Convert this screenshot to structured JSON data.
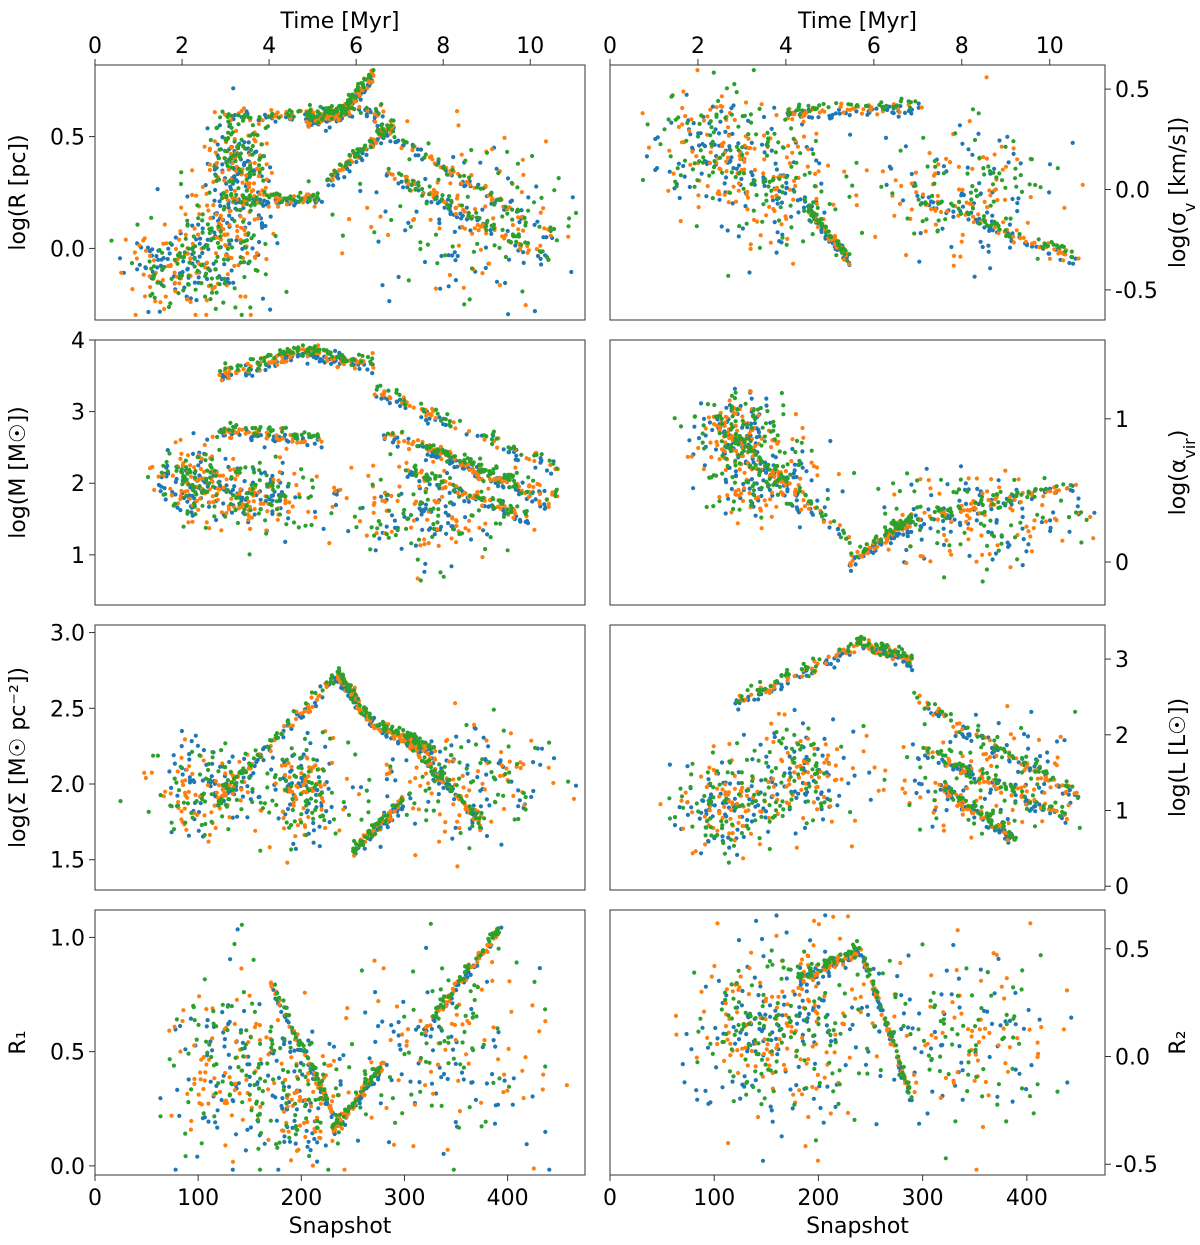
{
  "figure": {
    "top_axis_label": "Time [Myr]",
    "bottom_axis_label": "Snapshot",
    "series_colors": [
      "#1f77b4",
      "#ff7f0e",
      "#2ca02c"
    ]
  },
  "chart_data": [
    {
      "type": "scatter",
      "id": "logR",
      "title": "",
      "ylabel": "log(R [pc])",
      "ylabel_side": "left",
      "xlabel": "",
      "xlabel_top": "Time [Myr]",
      "xlim": [
        0,
        475
      ],
      "ylim": [
        -0.32,
        0.82
      ],
      "xticks": [],
      "yticks": [
        0.0,
        0.5
      ],
      "ytick_labels": [
        "0.0",
        "0.5"
      ],
      "top_ticks": [
        0,
        2,
        4,
        6,
        8,
        10
      ],
      "top_tick_labels": [
        "0",
        "2",
        "4",
        "6",
        "8",
        "10"
      ],
      "top_scale_myr_per_snapshot": 0.0237,
      "tracks": [
        {
          "x": [
            235,
            270
          ],
          "y": [
            0.58,
            0.78
          ]
        },
        {
          "x": [
            205,
            235
          ],
          "y": [
            0.57,
            0.6
          ]
        },
        {
          "x": [
            120,
            280
          ],
          "y": [
            0.58,
            0.62
          ]
        },
        {
          "x": [
            270,
            450
          ],
          "y": [
            0.55,
            0.05
          ]
        },
        {
          "x": [
            280,
            440
          ],
          "y": [
            0.35,
            -0.05
          ]
        },
        {
          "x": [
            120,
            220
          ],
          "y": [
            0.22,
            0.22
          ]
        },
        {
          "x": [
            225,
            290
          ],
          "y": [
            0.3,
            0.55
          ]
        }
      ],
      "clusters": [
        {
          "cx": 80,
          "cy": -0.08,
          "sx": 25,
          "sy": 0.1
        },
        {
          "cx": 130,
          "cy": 0.05,
          "sx": 20,
          "sy": 0.15
        },
        {
          "cx": 360,
          "cy": 0.15,
          "sx": 50,
          "sy": 0.17
        },
        {
          "cx": 140,
          "cy": 0.4,
          "sx": 15,
          "sy": 0.1
        }
      ],
      "series": [
        {
          "name": "series 1",
          "color": "#1f77b4",
          "seed": 11
        },
        {
          "name": "series 2",
          "color": "#ff7f0e",
          "seed": 12
        },
        {
          "name": "series 3",
          "color": "#2ca02c",
          "seed": 13
        }
      ]
    },
    {
      "type": "scatter",
      "id": "logSigma_v",
      "title": "",
      "ylabel": "log(σ_v [km/s])",
      "ylabel_side": "right",
      "xlabel": "",
      "xlabel_top": "Time [Myr]",
      "xlim": [
        0,
        475
      ],
      "ylim": [
        -0.65,
        0.62
      ],
      "xticks": [],
      "yticks": [
        -0.5,
        0.0,
        0.5
      ],
      "ytick_labels": [
        "-0.5",
        "0.0",
        "0.5"
      ],
      "top_ticks": [
        0,
        2,
        4,
        6,
        8,
        10
      ],
      "top_tick_labels": [
        "0",
        "2",
        "4",
        "6",
        "8",
        "10"
      ],
      "top_scale_myr_per_snapshot": 0.0237,
      "tracks": [
        {
          "x": [
            170,
            300
          ],
          "y": [
            0.38,
            0.42
          ]
        },
        {
          "x": [
            300,
            450
          ],
          "y": [
            -0.05,
            -0.35
          ]
        },
        {
          "x": [
            190,
            230
          ],
          "y": [
            -0.1,
            -0.35
          ]
        }
      ],
      "clusters": [
        {
          "cx": 100,
          "cy": 0.2,
          "sx": 30,
          "sy": 0.15
        },
        {
          "cx": 160,
          "cy": 0.0,
          "sx": 30,
          "sy": 0.18
        },
        {
          "cx": 340,
          "cy": 0.0,
          "sx": 45,
          "sy": 0.17
        }
      ],
      "series": [
        {
          "name": "series 1",
          "color": "#1f77b4",
          "seed": 21
        },
        {
          "name": "series 2",
          "color": "#ff7f0e",
          "seed": 22
        },
        {
          "name": "series 3",
          "color": "#2ca02c",
          "seed": 23
        }
      ]
    },
    {
      "type": "scatter",
      "id": "logM",
      "title": "",
      "ylabel": "log(M [M☉])",
      "ylabel_side": "left",
      "xlabel": "",
      "xlabel_top": "",
      "xlim": [
        0,
        475
      ],
      "ylim": [
        0.3,
        4.0
      ],
      "xticks": [],
      "yticks": [
        1,
        2,
        3,
        4
      ],
      "ytick_labels": [
        "1",
        "2",
        "3",
        "4"
      ],
      "tracks": [
        {
          "x": [
            120,
            200
          ],
          "y": [
            3.5,
            3.85
          ]
        },
        {
          "x": [
            200,
            270
          ],
          "y": [
            3.85,
            3.65
          ]
        },
        {
          "x": [
            270,
            450
          ],
          "y": [
            3.3,
            2.2
          ]
        },
        {
          "x": [
            280,
            450
          ],
          "y": [
            2.7,
            1.8
          ]
        },
        {
          "x": [
            120,
            220
          ],
          "y": [
            2.75,
            2.6
          ]
        },
        {
          "x": [
            300,
            420
          ],
          "y": [
            2.2,
            1.5
          ]
        },
        {
          "x": [
            320,
            440
          ],
          "y": [
            2.5,
            1.7
          ]
        }
      ],
      "clusters": [
        {
          "cx": 95,
          "cy": 2.0,
          "sx": 18,
          "sy": 0.25
        },
        {
          "cx": 320,
          "cy": 1.6,
          "sx": 40,
          "sy": 0.35
        },
        {
          "cx": 160,
          "cy": 1.8,
          "sx": 30,
          "sy": 0.25
        }
      ],
      "series": [
        {
          "name": "series 1",
          "color": "#1f77b4",
          "seed": 31
        },
        {
          "name": "series 2",
          "color": "#ff7f0e",
          "seed": 32
        },
        {
          "name": "series 3",
          "color": "#2ca02c",
          "seed": 33
        }
      ]
    },
    {
      "type": "scatter",
      "id": "logAlpha_vir",
      "title": "",
      "ylabel": "log(α_vir)",
      "ylabel_side": "right",
      "xlabel": "",
      "xlabel_top": "",
      "xlim": [
        0,
        475
      ],
      "ylim": [
        -0.3,
        1.55
      ],
      "xticks": [],
      "yticks": [
        0,
        1
      ],
      "ytick_labels": [
        "0",
        "1"
      ],
      "tracks": [
        {
          "x": [
            100,
            230
          ],
          "y": [
            1.0,
            0.15
          ]
        },
        {
          "x": [
            230,
            290
          ],
          "y": [
            0.0,
            0.3
          ]
        },
        {
          "x": [
            270,
            450
          ],
          "y": [
            0.25,
            0.55
          ]
        }
      ],
      "clusters": [
        {
          "cx": 120,
          "cy": 0.9,
          "sx": 20,
          "sy": 0.15
        },
        {
          "cx": 150,
          "cy": 0.6,
          "sx": 25,
          "sy": 0.15
        },
        {
          "cx": 350,
          "cy": 0.3,
          "sx": 50,
          "sy": 0.18
        }
      ],
      "series": [
        {
          "name": "series 1",
          "color": "#1f77b4",
          "seed": 41
        },
        {
          "name": "series 2",
          "color": "#ff7f0e",
          "seed": 42
        },
        {
          "name": "series 3",
          "color": "#2ca02c",
          "seed": 43
        }
      ]
    },
    {
      "type": "scatter",
      "id": "logSurfaceDensity",
      "title": "",
      "ylabel": "log(Σ [M☉ pc⁻²])",
      "ylabel_side": "left",
      "xlabel": "",
      "xlabel_top": "",
      "xlim": [
        0,
        475
      ],
      "ylim": [
        1.3,
        3.05
      ],
      "xticks": [],
      "yticks": [
        1.5,
        2.0,
        2.5,
        3.0
      ],
      "ytick_labels": [
        "1.5",
        "2.0",
        "2.5",
        "3.0"
      ],
      "tracks": [
        {
          "x": [
            120,
            235
          ],
          "y": [
            1.9,
            2.72
          ]
        },
        {
          "x": [
            235,
            270
          ],
          "y": [
            2.72,
            2.4
          ]
        },
        {
          "x": [
            270,
            330
          ],
          "y": [
            2.4,
            2.2
          ]
        },
        {
          "x": [
            250,
            300
          ],
          "y": [
            1.55,
            1.9
          ]
        },
        {
          "x": [
            300,
            380
          ],
          "y": [
            2.3,
            1.7
          ]
        }
      ],
      "clusters": [
        {
          "cx": 110,
          "cy": 1.95,
          "sx": 25,
          "sy": 0.15
        },
        {
          "cx": 200,
          "cy": 1.95,
          "sx": 20,
          "sy": 0.18
        },
        {
          "cx": 360,
          "cy": 2.0,
          "sx": 50,
          "sy": 0.2
        }
      ],
      "series": [
        {
          "name": "series 1",
          "color": "#1f77b4",
          "seed": 51
        },
        {
          "name": "series 2",
          "color": "#ff7f0e",
          "seed": 52
        },
        {
          "name": "series 3",
          "color": "#2ca02c",
          "seed": 53
        }
      ]
    },
    {
      "type": "scatter",
      "id": "logLuminosity",
      "title": "",
      "ylabel": "log(L [L☉])",
      "ylabel_side": "right",
      "xlabel": "",
      "xlabel_top": "",
      "xlim": [
        0,
        475
      ],
      "ylim": [
        -0.05,
        3.45
      ],
      "xticks": [],
      "yticks": [
        0,
        1,
        2,
        3
      ],
      "ytick_labels": [
        "0",
        "1",
        "2",
        "3"
      ],
      "tracks": [
        {
          "x": [
            120,
            240
          ],
          "y": [
            2.4,
            3.2
          ]
        },
        {
          "x": [
            240,
            290
          ],
          "y": [
            3.2,
            3.0
          ]
        },
        {
          "x": [
            290,
            450
          ],
          "y": [
            2.5,
            1.2
          ]
        },
        {
          "x": [
            300,
            440
          ],
          "y": [
            1.8,
            0.9
          ]
        },
        {
          "x": [
            320,
            390
          ],
          "y": [
            1.3,
            0.6
          ]
        }
      ],
      "clusters": [
        {
          "cx": 110,
          "cy": 1.0,
          "sx": 20,
          "sy": 0.3
        },
        {
          "cx": 180,
          "cy": 1.4,
          "sx": 30,
          "sy": 0.35
        },
        {
          "cx": 360,
          "cy": 1.4,
          "sx": 45,
          "sy": 0.35
        }
      ],
      "series": [
        {
          "name": "series 1",
          "color": "#1f77b4",
          "seed": 61
        },
        {
          "name": "series 2",
          "color": "#ff7f0e",
          "seed": 62
        },
        {
          "name": "series 3",
          "color": "#2ca02c",
          "seed": 63
        }
      ]
    },
    {
      "type": "scatter",
      "id": "R1",
      "title": "",
      "ylabel": "R₁",
      "ylabel_side": "left",
      "xlabel": "Snapshot",
      "xlabel_top": "",
      "xlim": [
        0,
        475
      ],
      "ylim": [
        -0.04,
        1.12
      ],
      "xticks": [
        0,
        100,
        200,
        300,
        400
      ],
      "xtick_labels": [
        "0",
        "100",
        "200",
        "300",
        "400"
      ],
      "yticks": [
        0.0,
        0.5,
        1.0
      ],
      "ytick_labels": [
        "0.0",
        "0.5",
        "1.0"
      ],
      "tracks": [
        {
          "x": [
            170,
            240
          ],
          "y": [
            0.8,
            0.15
          ]
        },
        {
          "x": [
            230,
            280
          ],
          "y": [
            0.15,
            0.45
          ]
        },
        {
          "x": [
            320,
            395
          ],
          "y": [
            0.6,
            1.05
          ]
        }
      ],
      "clusters": [
        {
          "cx": 130,
          "cy": 0.45,
          "sx": 30,
          "sy": 0.2
        },
        {
          "cx": 340,
          "cy": 0.5,
          "sx": 50,
          "sy": 0.2
        },
        {
          "cx": 200,
          "cy": 0.3,
          "sx": 25,
          "sy": 0.15
        }
      ],
      "series": [
        {
          "name": "series 1",
          "color": "#1f77b4",
          "seed": 71
        },
        {
          "name": "series 2",
          "color": "#ff7f0e",
          "seed": 72
        },
        {
          "name": "series 3",
          "color": "#2ca02c",
          "seed": 73
        }
      ]
    },
    {
      "type": "scatter",
      "id": "R2",
      "title": "",
      "ylabel": "R₂",
      "ylabel_side": "right",
      "xlabel": "Snapshot",
      "xlabel_top": "",
      "xlim": [
        0,
        475
      ],
      "ylim": [
        -0.55,
        0.68
      ],
      "xticks": [
        0,
        100,
        200,
        300,
        400
      ],
      "xtick_labels": [
        "0",
        "100",
        "200",
        "300",
        "400"
      ],
      "yticks": [
        -0.5,
        0.0,
        0.5
      ],
      "ytick_labels": [
        "-0.5",
        "0.0",
        "0.5"
      ],
      "tracks": [
        {
          "x": [
            180,
            240
          ],
          "y": [
            0.35,
            0.5
          ]
        },
        {
          "x": [
            240,
            290
          ],
          "y": [
            0.5,
            -0.2
          ]
        }
      ],
      "clusters": [
        {
          "cx": 130,
          "cy": 0.1,
          "sx": 30,
          "sy": 0.2
        },
        {
          "cx": 340,
          "cy": 0.1,
          "sx": 50,
          "sy": 0.2
        },
        {
          "cx": 190,
          "cy": 0.15,
          "sx": 30,
          "sy": 0.2
        }
      ],
      "series": [
        {
          "name": "series 1",
          "color": "#1f77b4",
          "seed": 81
        },
        {
          "name": "series 2",
          "color": "#ff7f0e",
          "seed": 82
        },
        {
          "name": "series 3",
          "color": "#2ca02c",
          "seed": 83
        }
      ]
    }
  ]
}
